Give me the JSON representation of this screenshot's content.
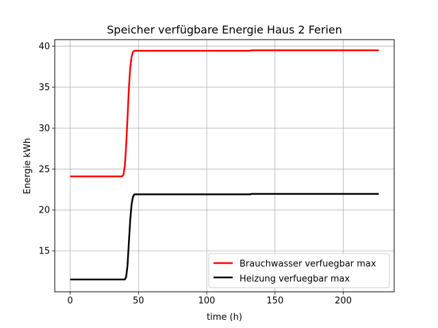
{
  "chart_data": {
    "type": "line",
    "title": "Speicher verfügbare Energie Haus 2 Ferien",
    "xlabel": "time (h)",
    "ylabel": "Energie kWh",
    "xlim": [
      -11.3,
      237.3
    ],
    "ylim": [
      10.0,
      40.8
    ],
    "xticks": [
      0,
      50,
      100,
      150,
      200
    ],
    "yticks": [
      15,
      20,
      25,
      30,
      35,
      40
    ],
    "grid": true,
    "legend_position": "lower-right",
    "series": [
      {
        "name": "Brauchwasser verfuegbar max",
        "color": "#ff0000",
        "x": [
          0,
          38,
          39,
          40,
          41,
          42,
          43,
          44,
          45,
          46,
          47,
          48,
          100,
          132,
          132.5,
          226
        ],
        "y": [
          24.1,
          24.1,
          24.3,
          25.4,
          27.8,
          31.2,
          34.8,
          37.4,
          38.7,
          39.3,
          39.45,
          39.45,
          39.45,
          39.45,
          39.5,
          39.5
        ]
      },
      {
        "name": "Heizung verfuegbar max",
        "color": "#000000",
        "x": [
          0,
          40,
          41,
          42,
          43,
          44,
          45,
          46,
          47,
          48,
          100,
          132,
          132.5,
          226
        ],
        "y": [
          11.5,
          11.5,
          11.8,
          13.2,
          16.0,
          18.8,
          20.7,
          21.6,
          21.9,
          21.9,
          21.9,
          21.9,
          21.95,
          21.95
        ]
      }
    ]
  }
}
